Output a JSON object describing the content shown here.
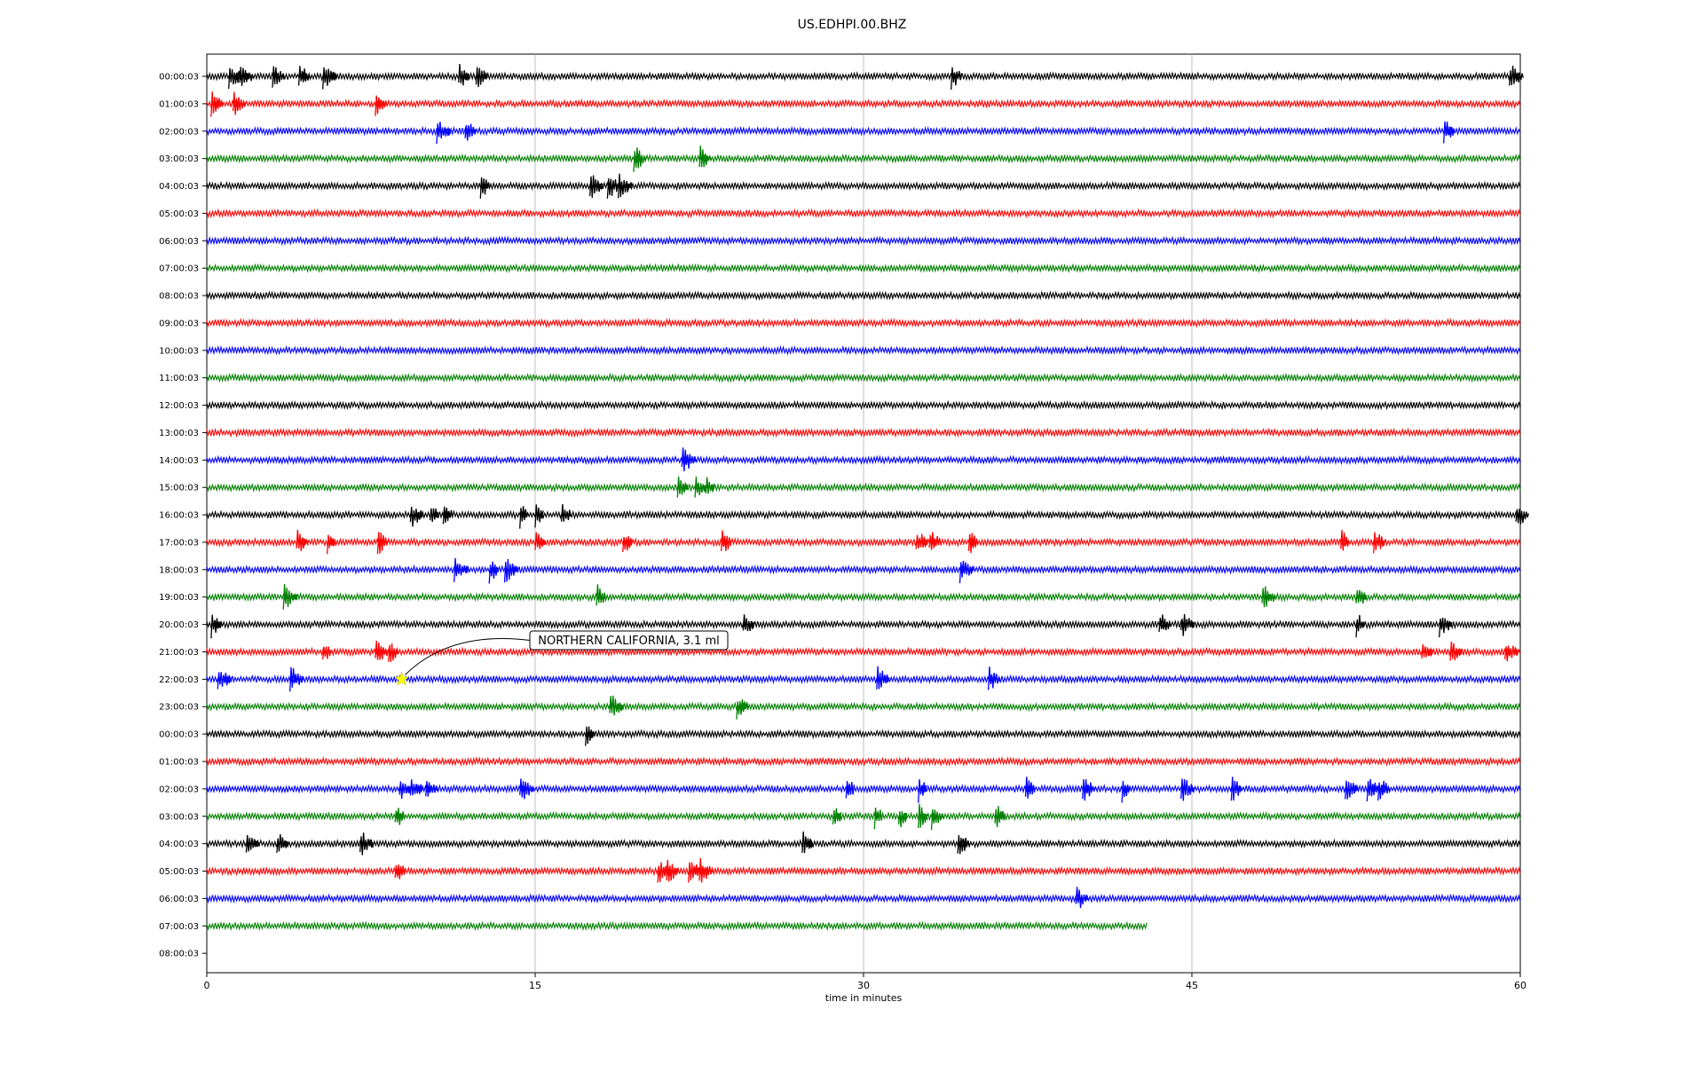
{
  "chart_data": {
    "type": "line",
    "title": "US.EDHPI.00.BHZ",
    "xlabel": "time in minutes",
    "ylabel": "",
    "xlim": [
      0,
      60
    ],
    "x_ticks": [
      "0",
      "15",
      "30",
      "45",
      "60"
    ],
    "grid": "vertical lines at 15, 30, 45",
    "trace_colors": [
      "#000000",
      "#ff0000",
      "#0000ff",
      "#008000"
    ],
    "series": [
      {
        "label": "00:00:03",
        "end_minute": 60,
        "events": [
          1.0,
          1.5,
          3.0,
          4.2,
          5.3,
          11.5,
          12.3,
          34.0,
          59.5
        ]
      },
      {
        "label": "01:00:03",
        "end_minute": 60,
        "events": [
          0.2,
          1.2,
          7.7
        ]
      },
      {
        "label": "02:00:03",
        "end_minute": 60,
        "events": [
          10.5,
          11.8,
          56.5
        ]
      },
      {
        "label": "03:00:03",
        "end_minute": 60,
        "events": [
          19.5,
          22.5
        ]
      },
      {
        "label": "04:00:03",
        "end_minute": 60,
        "events": [
          12.5,
          17.5,
          18.3,
          18.8
        ]
      },
      {
        "label": "05:00:03",
        "end_minute": 60,
        "events": []
      },
      {
        "label": "06:00:03",
        "end_minute": 60,
        "events": []
      },
      {
        "label": "07:00:03",
        "end_minute": 60,
        "events": []
      },
      {
        "label": "08:00:03",
        "end_minute": 60,
        "events": []
      },
      {
        "label": "09:00:03",
        "end_minute": 60,
        "events": []
      },
      {
        "label": "10:00:03",
        "end_minute": 60,
        "events": []
      },
      {
        "label": "11:00:03",
        "end_minute": 60,
        "events": []
      },
      {
        "label": "12:00:03",
        "end_minute": 60,
        "events": []
      },
      {
        "label": "13:00:03",
        "end_minute": 60,
        "events": []
      },
      {
        "label": "14:00:03",
        "end_minute": 60,
        "events": [
          21.7
        ]
      },
      {
        "label": "15:00:03",
        "end_minute": 60,
        "events": [
          21.5,
          22.3,
          22.8
        ]
      },
      {
        "label": "16:00:03",
        "end_minute": 60,
        "events": [
          9.3,
          10.2,
          10.8,
          14.3,
          15.0,
          16.2,
          59.8
        ]
      },
      {
        "label": "17:00:03",
        "end_minute": 60,
        "events": [
          4.1,
          5.5,
          7.8,
          15.0,
          19.0,
          23.5,
          32.4,
          33.0,
          34.8,
          51.8,
          53.3
        ]
      },
      {
        "label": "18:00:03",
        "end_minute": 60,
        "events": [
          11.3,
          12.9,
          13.6,
          34.4
        ]
      },
      {
        "label": "19:00:03",
        "end_minute": 60,
        "events": [
          3.5,
          17.8,
          48.2,
          52.5
        ]
      },
      {
        "label": "20:00:03",
        "end_minute": 60,
        "events": [
          0.2,
          24.5,
          43.5,
          44.5,
          52.5,
          56.3
        ]
      },
      {
        "label": "21:00:03",
        "end_minute": 60,
        "events": [
          5.3,
          7.7,
          8.3,
          55.5,
          56.8,
          59.3
        ]
      },
      {
        "label": "22:00:03",
        "end_minute": 60,
        "events": [
          0.5,
          3.8,
          30.6,
          35.7
        ]
      },
      {
        "label": "23:00:03",
        "end_minute": 60,
        "events": [
          18.4,
          24.2
        ]
      },
      {
        "label": "00:00:03",
        "end_minute": 60,
        "events": [
          17.3
        ]
      },
      {
        "label": "01:00:03",
        "end_minute": 60,
        "events": []
      },
      {
        "label": "02:00:03",
        "end_minute": 60,
        "events": [
          8.8,
          9.3,
          10.0,
          14.3,
          29.2,
          32.5,
          37.4,
          40.0,
          41.8,
          44.5,
          46.8,
          52.0,
          53.0,
          53.5
        ]
      },
      {
        "label": "03:00:03",
        "end_minute": 60,
        "events": [
          8.6,
          28.6,
          30.5,
          31.6,
          32.5,
          33.1,
          36.0
        ]
      },
      {
        "label": "04:00:03",
        "end_minute": 60,
        "events": [
          1.8,
          3.2,
          7.0,
          27.2,
          34.3
        ]
      },
      {
        "label": "05:00:03",
        "end_minute": 60,
        "events": [
          8.6,
          20.6,
          21.0,
          22.0,
          22.5
        ]
      },
      {
        "label": "06:00:03",
        "end_minute": 60,
        "events": [
          39.7
        ]
      },
      {
        "label": "07:00:03",
        "end_minute": 43,
        "events": []
      },
      {
        "label": "08:00:03",
        "end_minute": 0,
        "events": []
      }
    ],
    "annotations": [
      {
        "text": "NORTHERN CALIFORNIA, 3.1 ml",
        "row_index": 22,
        "minute": 8.9,
        "marker": "star",
        "marker_color": "#ffff00"
      }
    ]
  }
}
